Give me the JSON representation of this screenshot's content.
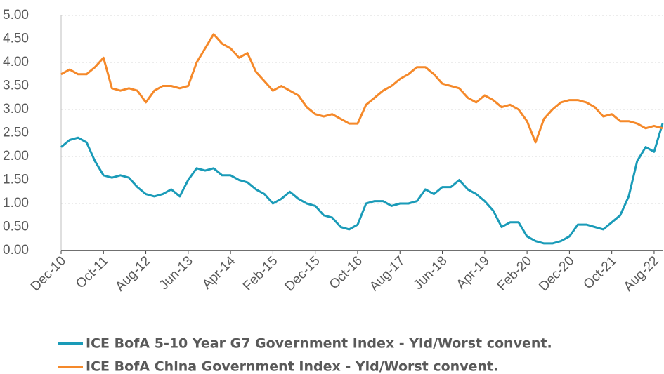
{
  "chart_data": {
    "type": "line",
    "categories": [
      "Dec-10",
      null,
      null,
      null,
      null,
      "Oct-11",
      null,
      null,
      null,
      null,
      "Aug-12",
      null,
      null,
      null,
      null,
      "Jun-13",
      null,
      null,
      null,
      null,
      "Apr-14",
      null,
      null,
      null,
      null,
      "Feb-15",
      null,
      null,
      null,
      null,
      "Dec-15",
      null,
      null,
      null,
      null,
      "Oct-16",
      null,
      null,
      null,
      null,
      "Aug-17",
      null,
      null,
      null,
      null,
      "Jun-18",
      null,
      null,
      null,
      null,
      "Apr-19",
      null,
      null,
      null,
      null,
      "Feb-20",
      null,
      null,
      null,
      null,
      "Dec-20",
      null,
      null,
      null,
      null,
      "Oct-21",
      null,
      null,
      null,
      null,
      "Aug-22",
      null
    ],
    "series": [
      {
        "name": "ICE BofA 5-10 Year G7 Government Index - Yld/Worst convent.",
        "color": "#1a9bb8",
        "values": [
          2.2,
          2.35,
          2.4,
          2.3,
          1.9,
          1.6,
          1.55,
          1.6,
          1.55,
          1.35,
          1.2,
          1.15,
          1.2,
          1.3,
          1.15,
          1.5,
          1.75,
          1.7,
          1.75,
          1.6,
          1.6,
          1.5,
          1.45,
          1.3,
          1.2,
          1.0,
          1.1,
          1.25,
          1.1,
          1.0,
          0.95,
          0.75,
          0.7,
          0.5,
          0.45,
          0.55,
          1.0,
          1.05,
          1.05,
          0.95,
          1.0,
          1.0,
          1.05,
          1.3,
          1.2,
          1.35,
          1.35,
          1.5,
          1.3,
          1.2,
          1.05,
          0.85,
          0.5,
          0.6,
          0.6,
          0.3,
          0.2,
          0.15,
          0.15,
          0.2,
          0.3,
          0.55,
          0.55,
          0.5,
          0.45,
          0.6,
          0.75,
          1.15,
          1.9,
          2.2,
          2.1,
          2.7
        ]
      },
      {
        "name": "ICE BofA China Government Index - Yld/Worst convent.",
        "color": "#f5892a",
        "values": [
          3.75,
          3.85,
          3.75,
          3.75,
          3.9,
          4.1,
          3.45,
          3.4,
          3.45,
          3.4,
          3.15,
          3.4,
          3.5,
          3.5,
          3.45,
          3.5,
          4.0,
          4.3,
          4.6,
          4.4,
          4.3,
          4.1,
          4.2,
          3.8,
          3.6,
          3.4,
          3.5,
          3.4,
          3.3,
          3.05,
          2.9,
          2.85,
          2.9,
          2.8,
          2.7,
          2.7,
          3.1,
          3.25,
          3.4,
          3.5,
          3.65,
          3.75,
          3.9,
          3.9,
          3.75,
          3.55,
          3.5,
          3.45,
          3.25,
          3.15,
          3.3,
          3.2,
          3.05,
          3.1,
          3.0,
          2.75,
          2.3,
          2.8,
          3.0,
          3.15,
          3.2,
          3.2,
          3.15,
          3.05,
          2.85,
          2.9,
          2.75,
          2.75,
          2.7,
          2.6,
          2.65,
          2.6
        ]
      }
    ],
    "ylim": [
      0,
      5
    ],
    "yticks": [
      {
        "value": 0,
        "label": "0.00"
      },
      {
        "value": 0.5,
        "label": "0.50"
      },
      {
        "value": 1,
        "label": "1.00"
      },
      {
        "value": 1.5,
        "label": "1.50"
      },
      {
        "value": 2,
        "label": "2.00"
      },
      {
        "value": 2.5,
        "label": "2.50"
      },
      {
        "value": 3,
        "label": "3.00"
      },
      {
        "value": 3.5,
        "label": "3.50"
      },
      {
        "value": 4,
        "label": "4.00"
      },
      {
        "value": 4.5,
        "label": "4.50"
      },
      {
        "value": 5,
        "label": "5.00"
      }
    ],
    "grid": true,
    "legend": "bottom"
  }
}
